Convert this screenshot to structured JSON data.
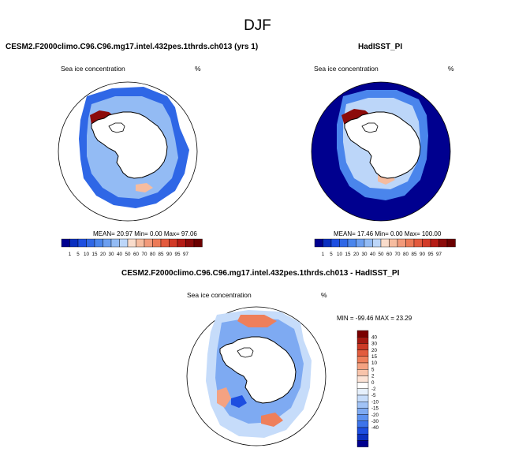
{
  "main_title": "DJF",
  "colors": {
    "ice_scale": [
      "#00008f",
      "#0a2fbf",
      "#1d4ee0",
      "#2f67e6",
      "#4a85ec",
      "#6c9ff0",
      "#93bbf4",
      "#bcd6f9",
      "#f9dccb",
      "#f6bc9f",
      "#f29a7a",
      "#ec7a57",
      "#e35a3d",
      "#d23a27",
      "#b51c15",
      "#8c0b0a",
      "#6b0000"
    ],
    "diff_scale": [
      "#00008f",
      "#0a2fbf",
      "#1d4ee0",
      "#3d74ea",
      "#5c91ef",
      "#7eaaf2",
      "#a1c3f6",
      "#c6dcfa",
      "#e6f0fc",
      "#ffffff",
      "#fce3d6",
      "#f8c4ab",
      "#f4a282",
      "#ee7f5b",
      "#e25c3e",
      "#cc3a26",
      "#a41911",
      "#7a0000"
    ]
  },
  "chart_data": [
    {
      "type": "heatmap",
      "panel": "left",
      "title": "CESM2.F2000climo.C96.C96.mg17.intel.432pes.1thrds.ch013 (yrs 1)",
      "variable": "Sea ice concentration",
      "units": "%",
      "stats": "MEAN=  20.97  Min=   0.00  Max=  97.06",
      "colorbar_ticks": [
        "1",
        "5",
        "10",
        "15",
        "20",
        "30",
        "40",
        "50",
        "60",
        "70",
        "80",
        "85",
        "90",
        "95",
        "97"
      ]
    },
    {
      "type": "heatmap",
      "panel": "right",
      "title": "HadISST_PI",
      "variable": "Sea ice concentration",
      "units": "%",
      "stats": "MEAN=  17.46  Min=   0.00  Max= 100.00",
      "colorbar_ticks": [
        "1",
        "5",
        "10",
        "15",
        "20",
        "30",
        "40",
        "50",
        "60",
        "70",
        "80",
        "85",
        "90",
        "95",
        "97"
      ]
    },
    {
      "type": "heatmap",
      "panel": "bottom",
      "title": "CESM2.F2000climo.C96.C96.mg17.intel.432pes.1thrds.ch013 - HadISST_PI",
      "variable": "Sea ice concentration",
      "units": "%",
      "stats": "MIN = -99.46 MAX =  23.29",
      "colorbar_ticks": [
        "40",
        "30",
        "20",
        "15",
        "10",
        "5",
        "2",
        "0",
        "-2",
        "-5",
        "-10",
        "-15",
        "-20",
        "-30",
        "-40"
      ]
    }
  ]
}
